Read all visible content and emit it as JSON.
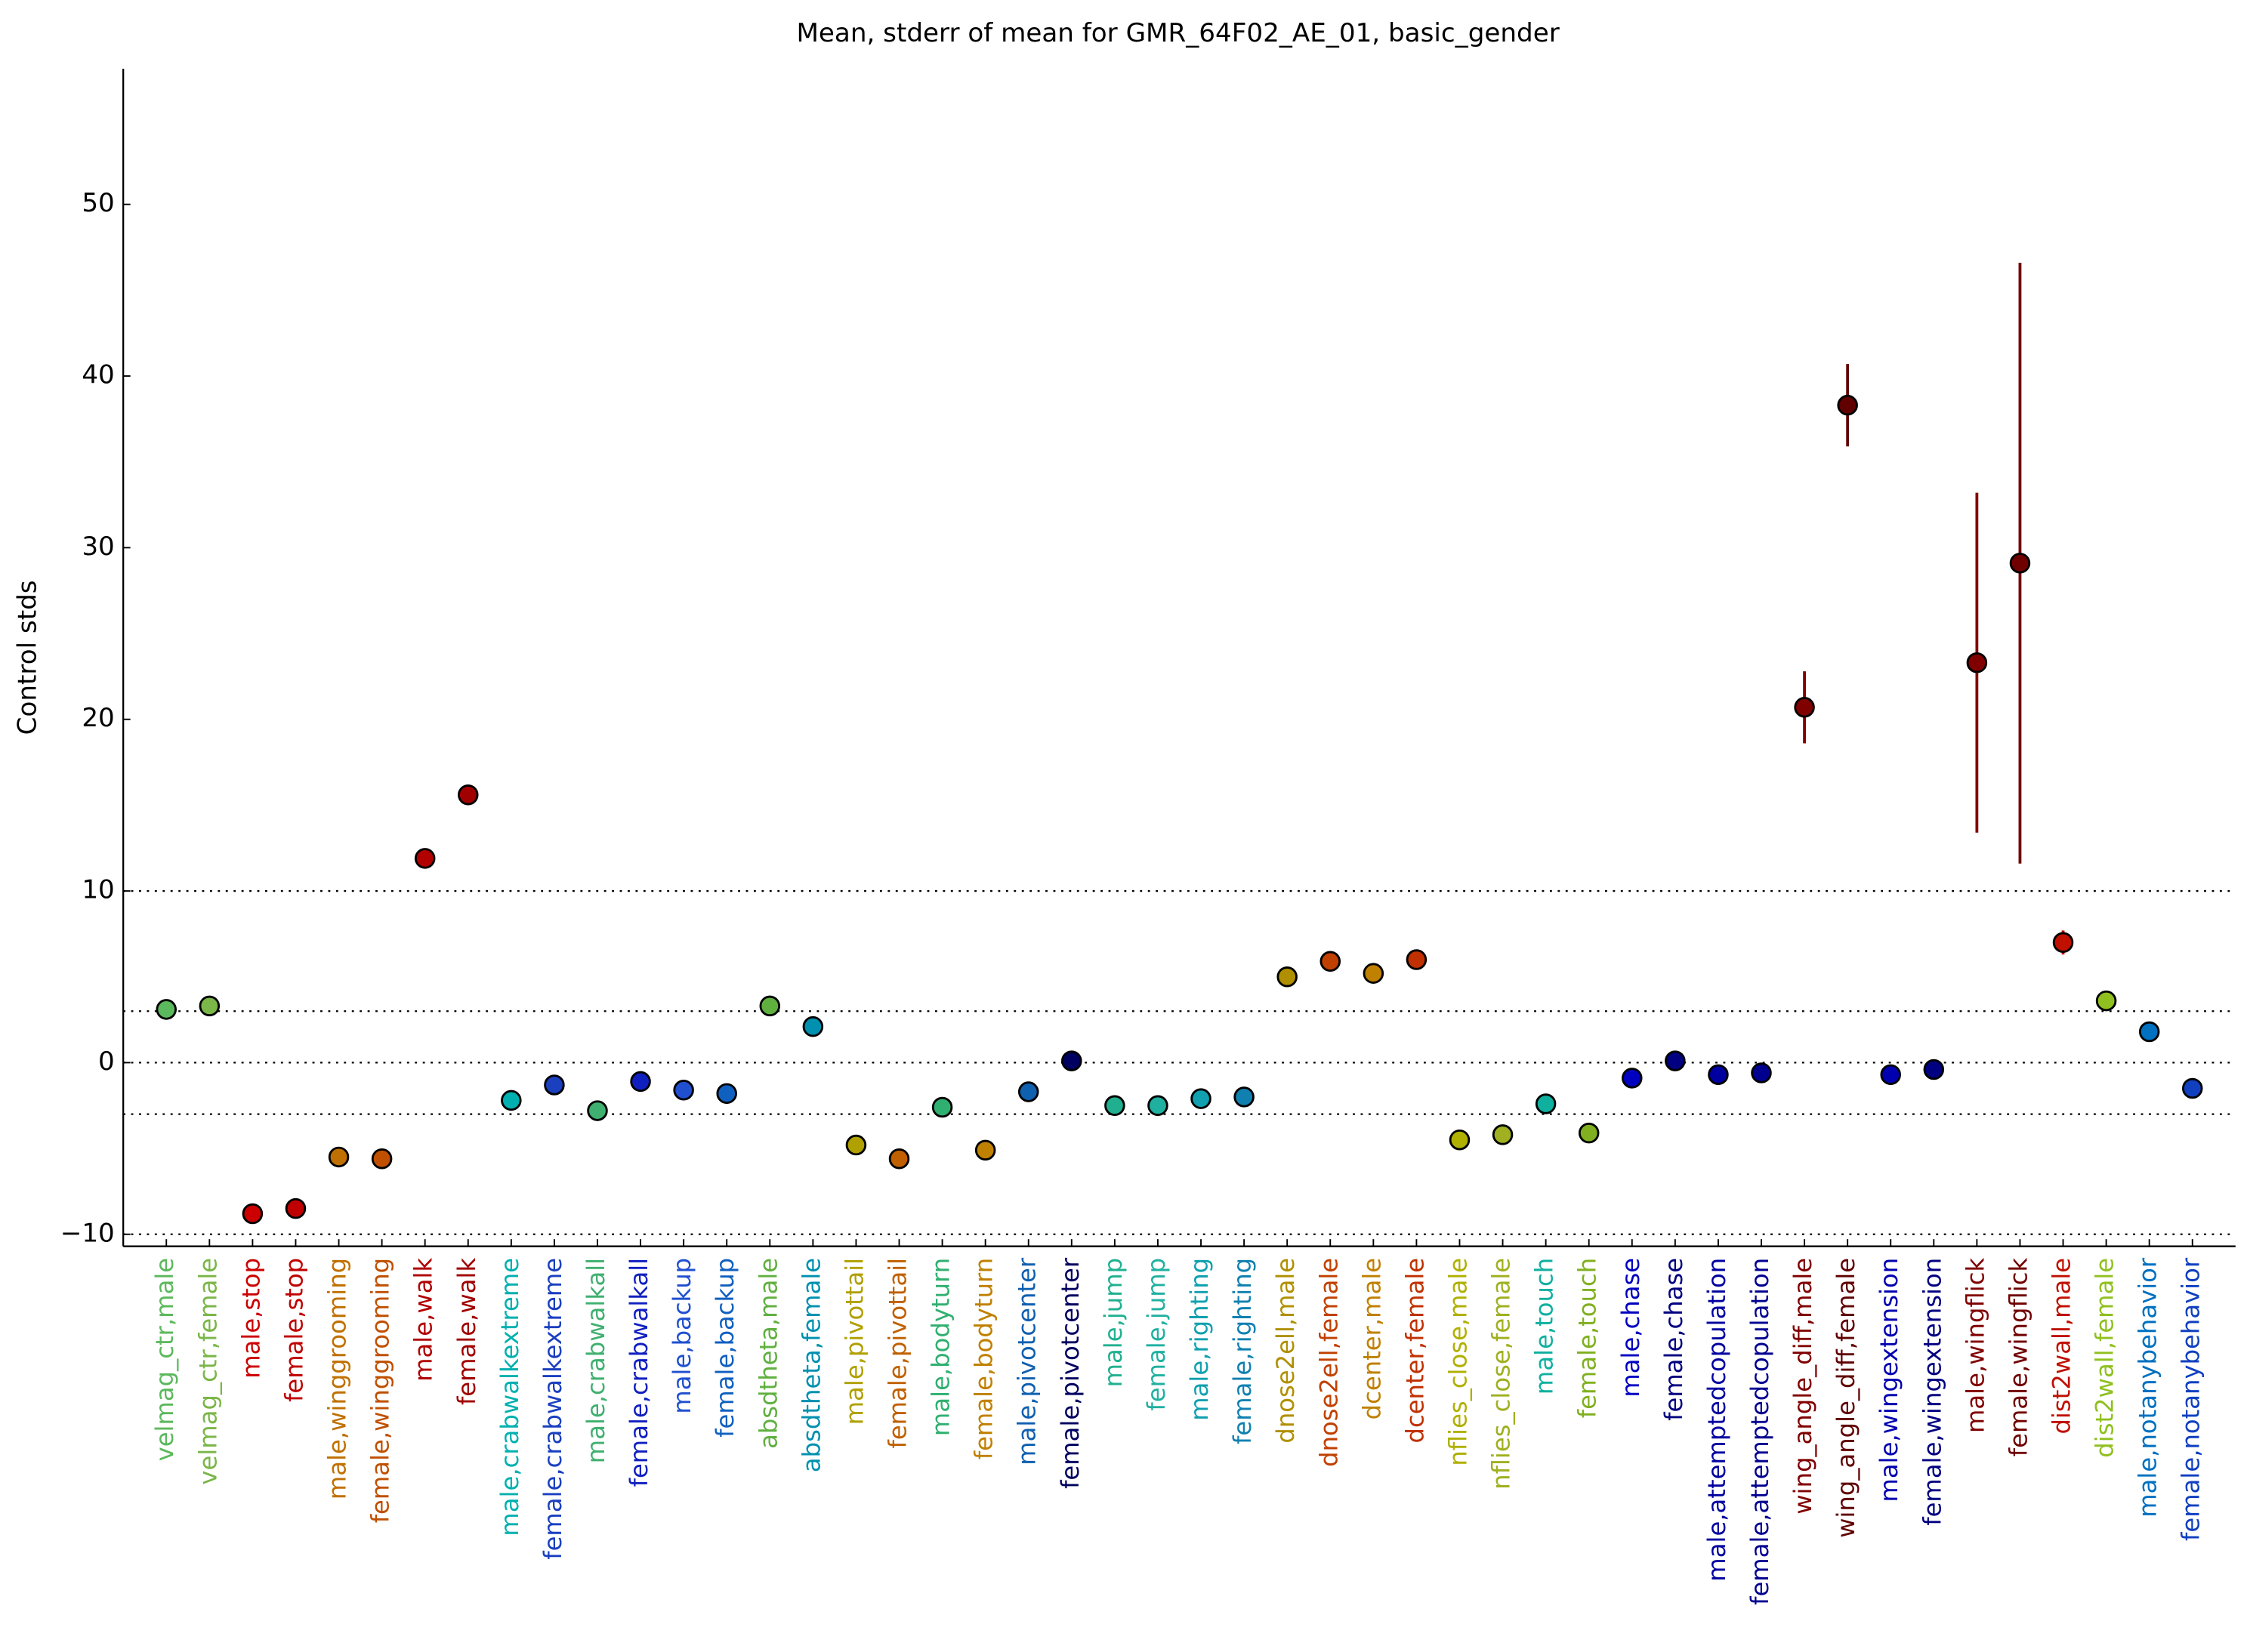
{
  "chart_data": {
    "type": "errorbar",
    "title": "Mean, stderr of mean for GMR_64F02_AE_01, basic_gender",
    "y_label": "Control stds",
    "categories": [
      "velmag_ctr,male",
      "velmag_ctr,female",
      "male,stop",
      "female,stop",
      "male,winggrooming",
      "female,winggrooming",
      "male,walk",
      "female,walk",
      "male,crabwalkextreme",
      "female,crabwalkextreme",
      "male,crabwalkall",
      "female,crabwalkall",
      "male,backup",
      "female,backup",
      "absdtheta,male",
      "absdtheta,female",
      "male,pivottail",
      "female,pivottail",
      "male,bodyturn",
      "female,bodyturn",
      "male,pivotcenter",
      "female,pivotcenter",
      "male,jump",
      "female,jump",
      "male,righting",
      "female,righting",
      "dnose2ell,male",
      "dnose2ell,female",
      "dcenter,male",
      "dcenter,female",
      "nflies_close,male",
      "nflies_close,female",
      "male,touch",
      "female,touch",
      "male,chase",
      "female,chase",
      "male,attemptedcopulation",
      "female,attemptedcopulation",
      "wing_angle_diff,male",
      "wing_angle_diff,female",
      "male,wingextension",
      "female,wingextension",
      "male,wingflick",
      "female,wingflick",
      "dist2wall,male",
      "dist2wall,female",
      "male,notanybehavior",
      "female,notanybehavior"
    ],
    "values": [
      3.1,
      3.3,
      -8.8,
      -8.5,
      -5.5,
      -5.6,
      11.9,
      15.6,
      -2.2,
      -1.3,
      -2.8,
      -1.1,
      -1.6,
      -1.8,
      3.3,
      2.1,
      -4.8,
      -5.6,
      -2.6,
      -5.1,
      -1.7,
      0.1,
      -2.5,
      -2.5,
      -2.1,
      -2.0,
      5.0,
      5.9,
      5.2,
      6.0,
      -4.5,
      -4.2,
      -2.4,
      -4.1,
      -0.9,
      0.1,
      -0.7,
      -0.6,
      20.7,
      38.3,
      -0.7,
      -0.4,
      23.3,
      29.1,
      7.0,
      3.6,
      1.8,
      -1.5
    ],
    "errors": [
      0.3,
      0.3,
      0.2,
      0.2,
      0.2,
      0.2,
      0.5,
      0.6,
      0.2,
      0.4,
      0.3,
      0.2,
      0.4,
      0.3,
      0.6,
      0.3,
      0.3,
      0.2,
      0.2,
      0.2,
      0.2,
      0.4,
      0.2,
      0.2,
      0.2,
      0.2,
      0.3,
      0.2,
      0.3,
      0.2,
      0.2,
      0.3,
      0.2,
      0.2,
      0.2,
      0.2,
      0.2,
      0.2,
      2.1,
      2.4,
      0.2,
      0.2,
      9.9,
      17.5,
      0.7,
      0.6,
      0.4,
      0.3
    ],
    "colors": [
      "#5cb85c",
      "#7ab648",
      "#cc0000",
      "#c00000",
      "#c07000",
      "#c05000",
      "#b00000",
      "#a00000",
      "#00b0b0",
      "#1a3fbf",
      "#40b070",
      "#1020c0",
      "#2050d0",
      "#1060c0",
      "#60b040",
      "#0090b0",
      "#b0a000",
      "#c06000",
      "#30b070",
      "#c08000",
      "#1060b0",
      "#000060",
      "#20b090",
      "#20b0a0",
      "#10a0b0",
      "#1080b0",
      "#b09000",
      "#c04000",
      "#c08000",
      "#c03000",
      "#b0b000",
      "#a0b020",
      "#10b0a0",
      "#80b020",
      "#0000c0",
      "#000080",
      "#0000a0",
      "#000090",
      "#800000",
      "#600000",
      "#0000b0",
      "#000080",
      "#800000",
      "#700000",
      "#c01000",
      "#90c020",
      "#0070c0",
      "#1040c0"
    ],
    "ylim": [
      -10.7,
      57.9
    ],
    "yticks": [
      {
        "value": -10,
        "label": "−10"
      },
      0,
      10,
      20,
      30,
      40,
      50
    ],
    "reference_lines": [
      10,
      3,
      0,
      -3,
      -10
    ]
  }
}
